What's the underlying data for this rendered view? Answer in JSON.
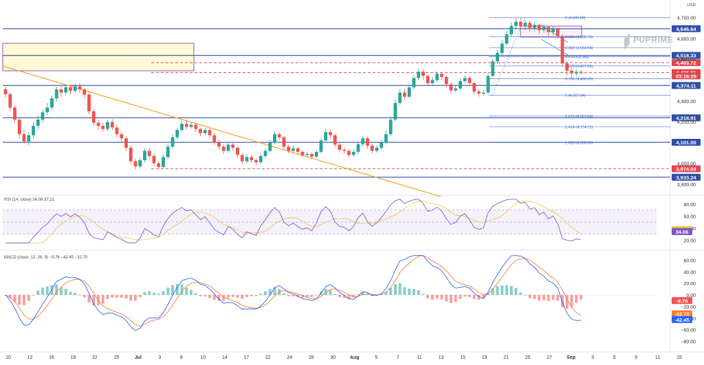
{
  "chart_data": {
    "type": "candlestick",
    "currency": "USD",
    "brand": "PUPRIME",
    "price_axis": {
      "ticks": [
        "4,700.00",
        "4,600.00",
        "4,500.00",
        "4,300.00",
        "4,200.00",
        "4,000.00",
        "3,900.00"
      ],
      "tick_values": [
        4700,
        4600,
        4500,
        4300,
        4200,
        4000,
        3900
      ],
      "range": [
        3860,
        4745
      ]
    },
    "x_axis": {
      "labels": [
        "10",
        "12",
        "16",
        "18",
        "22",
        "25",
        "Jul",
        "3",
        "8",
        "10",
        "14",
        "17",
        "22",
        "24",
        "28",
        "30",
        "Aug",
        "5",
        "7",
        "11",
        "13",
        "15",
        "19",
        "21",
        "25",
        "27",
        "Sep",
        "3",
        "5",
        "9",
        "11",
        "15"
      ]
    },
    "horizontal_levels": [
      {
        "label": "4,646.64",
        "value": 4646.64,
        "color": "#2f4fa8"
      },
      {
        "label": "4,518.33",
        "value": 4518.33,
        "color": "#2f4fa8"
      },
      {
        "label": "4,483.72",
        "value": 4483.72,
        "color": "#e0464f"
      },
      {
        "label": "4,435.81",
        "value": 4435.81,
        "color": "#e0464f"
      },
      {
        "label": "03:16:29",
        "value": 4420,
        "color": "#e0464f"
      },
      {
        "label": "4,374.11",
        "value": 4374.11,
        "color": "#2f4fa8"
      },
      {
        "label": "4,218.91",
        "value": 4218.91,
        "color": "#2f4fa8"
      },
      {
        "label": "4,101.00",
        "value": 4101.0,
        "color": "#2f4fa8"
      },
      {
        "label": "3,974.04",
        "value": 3974.04,
        "color": "#e0464f"
      },
      {
        "label": "3,933.24",
        "value": 3933.24,
        "color": "#2f4fa8"
      }
    ],
    "fibonacci_levels": [
      {
        "label": "0 (4,699.68)",
        "value": 4699.68
      },
      {
        "label": "0.236 (4,608.73)",
        "value": 4608.73
      },
      {
        "label": "0.382 (4,554.94)",
        "value": 4554.94
      },
      {
        "label": "0.5 (4,511.86)",
        "value": 4511.86
      },
      {
        "label": "0.618 (4,467.99)",
        "value": 4467.99
      },
      {
        "label": "0.786 (4,406.09)",
        "value": 4406.09
      },
      {
        "label": "1 (4,327.24)",
        "value": 4327.24
      },
      {
        "label": "1.272 (4,227.03)",
        "value": 4227.03
      },
      {
        "label": "1.414 (4,174.71)",
        "value": 4174.71
      },
      {
        "label": "1.618 (4,099.55)",
        "value": 4099.55
      }
    ],
    "candles": [
      [
        4356,
        4332,
        4368,
        4315
      ],
      [
        4332,
        4268,
        4340,
        4250
      ],
      [
        4268,
        4210,
        4280,
        4195
      ],
      [
        4210,
        4140,
        4225,
        4120
      ],
      [
        4140,
        4105,
        4160,
        4095
      ],
      [
        4105,
        4135,
        4150,
        4085
      ],
      [
        4135,
        4180,
        4195,
        4120
      ],
      [
        4180,
        4210,
        4230,
        4165
      ],
      [
        4210,
        4245,
        4260,
        4195
      ],
      [
        4245,
        4268,
        4290,
        4230
      ],
      [
        4268,
        4312,
        4325,
        4255
      ],
      [
        4312,
        4355,
        4368,
        4298
      ],
      [
        4355,
        4340,
        4372,
        4320
      ],
      [
        4340,
        4365,
        4380,
        4325
      ],
      [
        4365,
        4348,
        4375,
        4330
      ],
      [
        4348,
        4370,
        4382,
        4338
      ],
      [
        4370,
        4355,
        4386,
        4340
      ],
      [
        4355,
        4330,
        4362,
        4310
      ],
      [
        4330,
        4250,
        4340,
        4235
      ],
      [
        4250,
        4195,
        4262,
        4180
      ],
      [
        4195,
        4180,
        4210,
        4160
      ],
      [
        4180,
        4165,
        4195,
        4150
      ],
      [
        4165,
        4198,
        4210,
        4155
      ],
      [
        4198,
        4172,
        4212,
        4160
      ],
      [
        4172,
        4140,
        4185,
        4125
      ],
      [
        4140,
        4120,
        4150,
        4105
      ],
      [
        4120,
        4075,
        4132,
        4060
      ],
      [
        4075,
        4010,
        4088,
        3995
      ],
      [
        4010,
        3985,
        4022,
        3972
      ],
      [
        3985,
        4015,
        4030,
        3975
      ],
      [
        4015,
        4060,
        4072,
        4005
      ],
      [
        4060,
        4035,
        4075,
        4020
      ],
      [
        4035,
        4000,
        4048,
        3985
      ],
      [
        4000,
        3982,
        4012,
        3972
      ],
      [
        3982,
        4030,
        4042,
        3975
      ],
      [
        4030,
        4080,
        4092,
        4020
      ],
      [
        4080,
        4125,
        4140,
        4070
      ],
      [
        4125,
        4160,
        4172,
        4115
      ],
      [
        4160,
        4190,
        4205,
        4150
      ],
      [
        4190,
        4175,
        4210,
        4160
      ],
      [
        4175,
        4185,
        4196,
        4165
      ],
      [
        4185,
        4165,
        4195,
        4150
      ],
      [
        4165,
        4145,
        4172,
        4130
      ],
      [
        4145,
        4160,
        4170,
        4135
      ],
      [
        4160,
        4135,
        4168,
        4122
      ],
      [
        4135,
        4100,
        4145,
        4088
      ],
      [
        4100,
        4080,
        4112,
        4065
      ],
      [
        4080,
        4060,
        4090,
        4045
      ],
      [
        4060,
        4090,
        4102,
        4050
      ],
      [
        4090,
        4075,
        4098,
        4062
      ],
      [
        4075,
        4040,
        4082,
        4025
      ],
      [
        4040,
        4010,
        4050,
        3995
      ],
      [
        4010,
        4030,
        4045,
        4000
      ],
      [
        4030,
        4015,
        4040,
        4002
      ],
      [
        4015,
        4005,
        4025,
        3990
      ],
      [
        4005,
        4035,
        4048,
        3998
      ],
      [
        4035,
        4060,
        4072,
        4025
      ],
      [
        4060,
        4100,
        4112,
        4052
      ],
      [
        4100,
        4140,
        4155,
        4090
      ],
      [
        4140,
        4125,
        4150,
        4110
      ],
      [
        4125,
        4080,
        4132,
        4068
      ],
      [
        4080,
        4060,
        4090,
        4048
      ],
      [
        4060,
        4072,
        4085,
        4052
      ],
      [
        4072,
        4055,
        4080,
        4040
      ],
      [
        4055,
        4040,
        4062,
        4028
      ],
      [
        4040,
        4045,
        4058,
        4030
      ],
      [
        4045,
        4032,
        4052,
        4022
      ],
      [
        4032,
        4055,
        4066,
        4025
      ],
      [
        4055,
        4110,
        4122,
        4048
      ],
      [
        4110,
        4150,
        4165,
        4100
      ],
      [
        4150,
        4135,
        4160,
        4120
      ],
      [
        4135,
        4090,
        4142,
        4078
      ],
      [
        4090,
        4065,
        4098,
        4052
      ],
      [
        4065,
        4060,
        4075,
        4045
      ],
      [
        4060,
        4040,
        4068,
        4028
      ],
      [
        4040,
        4055,
        4068,
        4030
      ],
      [
        4055,
        4092,
        4105,
        4045
      ],
      [
        4092,
        4120,
        4132,
        4080
      ],
      [
        4120,
        4085,
        4128,
        4070
      ],
      [
        4085,
        4060,
        4095,
        4048
      ],
      [
        4060,
        4075,
        4088,
        4052
      ],
      [
        4075,
        4100,
        4112,
        4065
      ],
      [
        4100,
        4140,
        4156,
        4090
      ],
      [
        4140,
        4210,
        4225,
        4130
      ],
      [
        4210,
        4290,
        4305,
        4200
      ],
      [
        4290,
        4340,
        4356,
        4280
      ],
      [
        4340,
        4320,
        4358,
        4305
      ],
      [
        4320,
        4365,
        4380,
        4312
      ],
      [
        4365,
        4410,
        4425,
        4355
      ],
      [
        4410,
        4440,
        4456,
        4398
      ],
      [
        4440,
        4420,
        4450,
        4402
      ],
      [
        4420,
        4385,
        4428,
        4370
      ],
      [
        4385,
        4400,
        4415,
        4372
      ],
      [
        4400,
        4430,
        4442,
        4390
      ],
      [
        4430,
        4415,
        4440,
        4398
      ],
      [
        4415,
        4380,
        4422,
        4365
      ],
      [
        4380,
        4350,
        4390,
        4335
      ],
      [
        4350,
        4360,
        4375,
        4342
      ],
      [
        4360,
        4395,
        4408,
        4350
      ],
      [
        4395,
        4410,
        4422,
        4385
      ],
      [
        4410,
        4385,
        4418,
        4372
      ],
      [
        4385,
        4345,
        4392,
        4330
      ],
      [
        4345,
        4335,
        4358,
        4320
      ],
      [
        4335,
        4340,
        4352,
        4322
      ],
      [
        4340,
        4420,
        4432,
        4332
      ],
      [
        4420,
        4490,
        4502,
        4412
      ],
      [
        4490,
        4530,
        4545,
        4478
      ],
      [
        4530,
        4575,
        4590,
        4520
      ],
      [
        4575,
        4620,
        4636,
        4565
      ],
      [
        4620,
        4660,
        4676,
        4610
      ],
      [
        4660,
        4680,
        4695,
        4648
      ],
      [
        4680,
        4660,
        4700,
        4645
      ],
      [
        4660,
        4675,
        4690,
        4640
      ],
      [
        4675,
        4650,
        4688,
        4630
      ],
      [
        4650,
        4665,
        4680,
        4635
      ],
      [
        4665,
        4640,
        4672,
        4620
      ],
      [
        4640,
        4655,
        4668,
        4625
      ],
      [
        4655,
        4630,
        4662,
        4610
      ],
      [
        4630,
        4645,
        4660,
        4615
      ],
      [
        4645,
        4612,
        4652,
        4598
      ],
      [
        4612,
        4480,
        4622,
        4465
      ],
      [
        4480,
        4445,
        4490,
        4420
      ],
      [
        4445,
        4432,
        4458,
        4415
      ],
      [
        4432,
        4440,
        4452,
        4420
      ],
      [
        4440,
        4435,
        4448,
        4425
      ]
    ],
    "indicators": [
      {
        "name": "RSI",
        "params": "(14, close)",
        "values_printed": [
          "34.06",
          "37.21"
        ],
        "axis_ticks": [
          "80.00",
          "60.00",
          "40.00",
          "20.00"
        ],
        "tick_values": [
          80,
          60,
          40,
          20
        ],
        "band": [
          30,
          70
        ]
      },
      {
        "name": "MACD",
        "params": "(close, 12, 26, 9)",
        "values_printed": [
          "−9.76",
          "−42.45",
          "−32.70"
        ],
        "axis_ticks": [
          "60.00",
          "40.00",
          "20.00",
          "0.00",
          "−20.00",
          "−40.00",
          "−60.00",
          "−80.00"
        ],
        "tick_values": [
          60,
          40,
          20,
          0,
          -20,
          -40,
          -60,
          -80
        ]
      }
    ],
    "rsi_badges": [
      {
        "label": "37.21",
        "value": 37.21,
        "color": "#e8b93a"
      },
      {
        "label": "34.06",
        "value": 34.06,
        "color": "#7e57c2"
      }
    ],
    "macd_badges": [
      {
        "label": "-9.76",
        "value": -9.76,
        "color": "#ef5350"
      },
      {
        "label": "-32.70",
        "value": -32.7,
        "color": "#ff7a2f"
      },
      {
        "label": "-42.45",
        "value": -42.45,
        "color": "#2962ff"
      }
    ]
  }
}
